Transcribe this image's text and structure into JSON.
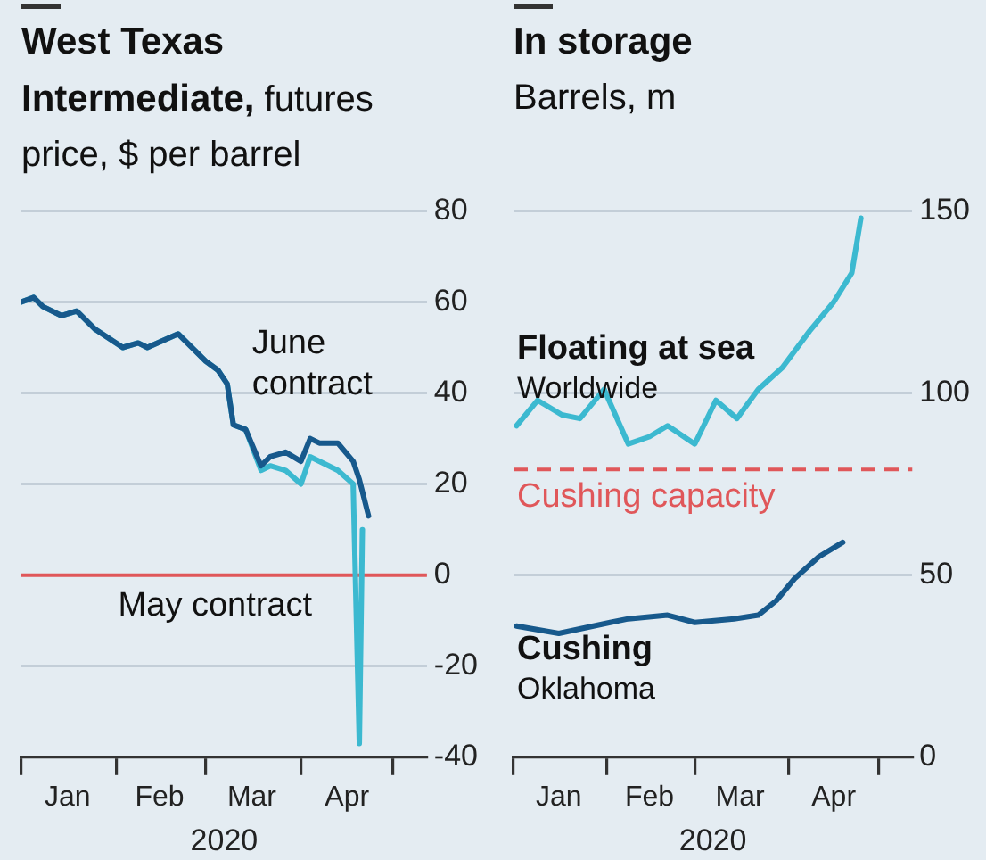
{
  "chart_data": [
    {
      "type": "line",
      "title": "West Texas Intermediate,",
      "subtitle": "futures price, $ per barrel",
      "xlabel": "2020",
      "xlim": [
        "2020-01-01",
        "2020-05-12"
      ],
      "xticks": [
        {
          "value": "2020-01-01",
          "label": null
        },
        {
          "value": "2020-01-16",
          "label": "Jan"
        },
        {
          "value": "2020-02-01",
          "label": null
        },
        {
          "value": "2020-02-15",
          "label": "Feb"
        },
        {
          "value": "2020-03-01",
          "label": null
        },
        {
          "value": "2020-03-16",
          "label": "Mar"
        },
        {
          "value": "2020-04-01",
          "label": null
        },
        {
          "value": "2020-04-16",
          "label": "Apr"
        },
        {
          "value": "2020-05-01",
          "label": null
        }
      ],
      "ylim": [
        -40,
        80
      ],
      "yticks": [
        -40,
        -20,
        0,
        20,
        40,
        60,
        80
      ],
      "grid": "y",
      "legend": false,
      "line_style": "solid",
      "marker": "none",
      "series": [
        {
          "name": "June contract",
          "color": "#17598c",
          "x": [
            "2020-01-01",
            "2020-01-05",
            "2020-01-08",
            "2020-01-14",
            "2020-01-19",
            "2020-01-25",
            "2020-02-03",
            "2020-02-08",
            "2020-02-11",
            "2020-02-21",
            "2020-03-01",
            "2020-03-05",
            "2020-03-08",
            "2020-03-10",
            "2020-03-14",
            "2020-03-19",
            "2020-03-22",
            "2020-03-27",
            "2020-04-01",
            "2020-04-04",
            "2020-04-07",
            "2020-04-13",
            "2020-04-18",
            "2020-04-20",
            "2020-04-23"
          ],
          "values": [
            60,
            61,
            59,
            57,
            58,
            54,
            50,
            51,
            50,
            53,
            47,
            45,
            42,
            33,
            32,
            24,
            26,
            27,
            25,
            30,
            29,
            29,
            25,
            21,
            13
          ]
        },
        {
          "name": "May contract",
          "color": "#3cb9d0",
          "x": [
            "2020-01-01",
            "2020-01-05",
            "2020-01-08",
            "2020-01-14",
            "2020-01-19",
            "2020-01-25",
            "2020-02-03",
            "2020-02-08",
            "2020-02-11",
            "2020-02-21",
            "2020-03-01",
            "2020-03-05",
            "2020-03-08",
            "2020-03-10",
            "2020-03-14",
            "2020-03-19",
            "2020-03-22",
            "2020-03-27",
            "2020-04-01",
            "2020-04-04",
            "2020-04-13",
            "2020-04-18",
            "2020-04-20",
            "2020-04-21"
          ],
          "values": [
            60,
            61,
            59,
            57,
            58,
            54,
            50,
            51,
            50,
            53,
            47,
            45,
            42,
            33,
            32,
            23,
            24,
            23,
            20,
            26,
            23,
            20,
            -37,
            10
          ]
        }
      ],
      "ref_lines": [
        {
          "axis": "y",
          "value": 0,
          "color": "#e0575a",
          "line_style": "solid"
        }
      ]
    },
    {
      "type": "line",
      "title": "In storage",
      "subtitle": "Barrels, m",
      "xlabel": "2020",
      "xlim": [
        "2020-01-01",
        "2020-05-12"
      ],
      "xticks": [
        {
          "value": "2020-01-01",
          "label": null
        },
        {
          "value": "2020-01-16",
          "label": "Jan"
        },
        {
          "value": "2020-02-01",
          "label": null
        },
        {
          "value": "2020-02-15",
          "label": "Feb"
        },
        {
          "value": "2020-03-01",
          "label": null
        },
        {
          "value": "2020-03-16",
          "label": "Mar"
        },
        {
          "value": "2020-04-01",
          "label": null
        },
        {
          "value": "2020-04-16",
          "label": "Apr"
        },
        {
          "value": "2020-05-01",
          "label": null
        }
      ],
      "ylim": [
        0,
        150
      ],
      "yticks": [
        0,
        50,
        100,
        150
      ],
      "grid": "y",
      "legend": false,
      "line_style": "solid",
      "marker": "none",
      "series": [
        {
          "name": "Floating at sea",
          "color": "#3cb9d0",
          "x": [
            "2020-01-02",
            "2020-01-09",
            "2020-01-17",
            "2020-01-23",
            "2020-01-31",
            "2020-02-08",
            "2020-02-15",
            "2020-02-21",
            "2020-03-01",
            "2020-03-08",
            "2020-03-15",
            "2020-03-22",
            "2020-03-30",
            "2020-04-08",
            "2020-04-16",
            "2020-04-22",
            "2020-04-25"
          ],
          "values": [
            91,
            98,
            94,
            93,
            101,
            86,
            88,
            91,
            86,
            98,
            93,
            101,
            107,
            117,
            125,
            133,
            148
          ]
        },
        {
          "name": "Cushing",
          "color": "#17598c",
          "x": [
            "2020-01-02",
            "2020-01-16",
            "2020-02-02",
            "2020-02-08",
            "2020-02-21",
            "2020-03-01",
            "2020-03-14",
            "2020-03-22",
            "2020-03-28",
            "2020-04-03",
            "2020-04-11",
            "2020-04-19"
          ],
          "values": [
            36,
            34,
            37,
            38,
            39,
            37,
            38,
            39,
            43,
            49,
            55,
            59
          ]
        }
      ],
      "annotations": [
        "Worldwide",
        "Oklahoma"
      ],
      "ref_lines": [
        {
          "axis": "y",
          "value": 79,
          "label": "Cushing capacity",
          "color": "#e0575a",
          "line_style": "dashed"
        }
      ]
    }
  ]
}
